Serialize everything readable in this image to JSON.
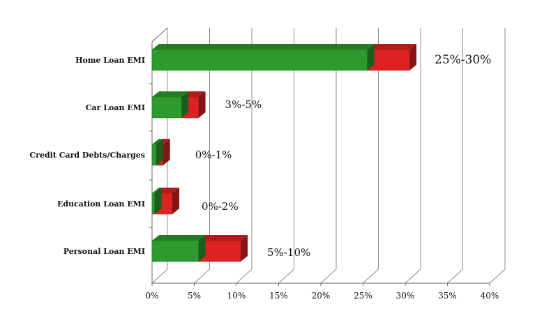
{
  "chart_data": {
    "type": "bar",
    "orientation": "horizontal",
    "stacked": true,
    "style": "3d",
    "categories": [
      "Home Loan EMI",
      "Car Loan EMI",
      "Credit Card Debts/Charges",
      "Education Loan EMI",
      "Personal Loan EMI"
    ],
    "series": [
      {
        "color": "#2e9a2e",
        "values": [
          25.5,
          3.5,
          0.5,
          0.3,
          5.5
        ]
      },
      {
        "color": "#dd2222",
        "values": [
          5,
          2,
          0.8,
          2.1,
          5
        ]
      }
    ],
    "range_labels": [
      "25%-30%",
      "3%-5%",
      "0%-1%",
      "0%-2%",
      "5%-10%"
    ],
    "x_ticks": [
      "0%",
      "5%",
      "10%",
      "15%",
      "20%",
      "25%",
      "30%",
      "35%",
      "40%"
    ],
    "xlim": [
      0,
      40
    ],
    "grid": true,
    "legend": "none"
  }
}
